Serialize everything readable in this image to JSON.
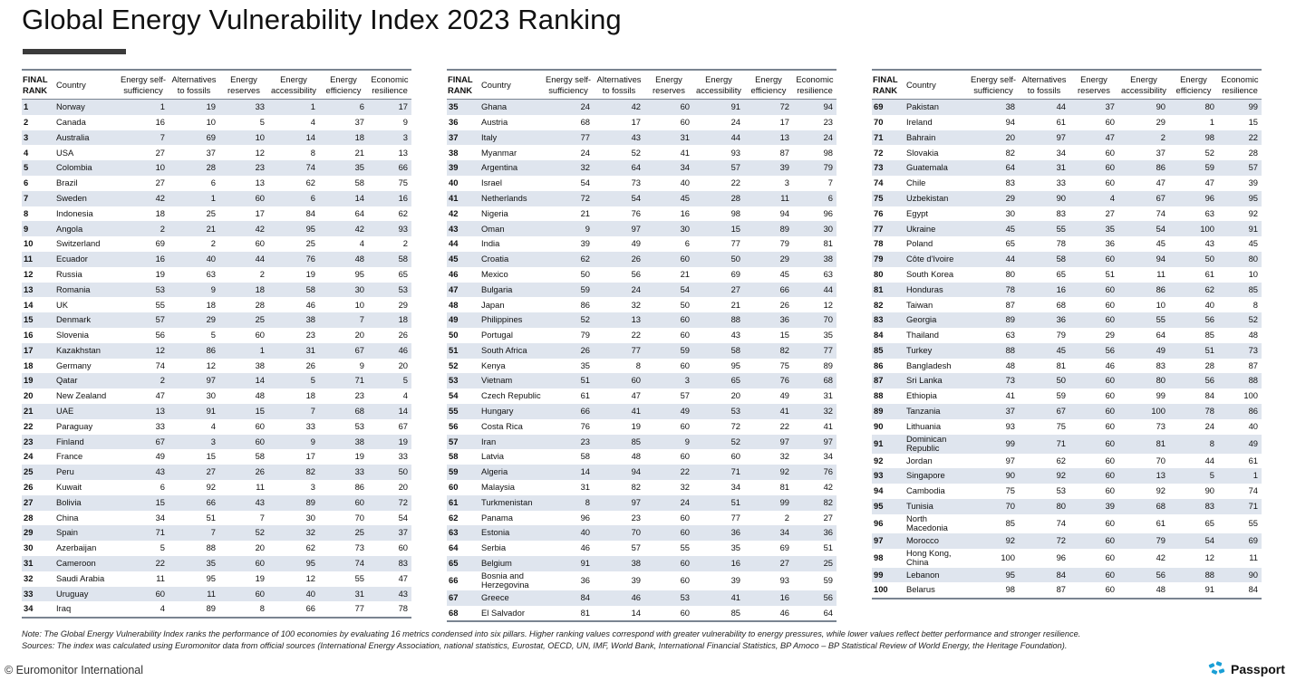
{
  "title": "Global Energy Vulnerability Index 2023 Ranking",
  "columns": {
    "rank": [
      "FINAL",
      "RANK"
    ],
    "country": "Country",
    "c1": [
      "Energy self-",
      "sufficiency"
    ],
    "c2": [
      "Alternatives",
      "to fossils"
    ],
    "c3": [
      "Energy",
      "reserves"
    ],
    "c4": [
      "Energy",
      "accessibility"
    ],
    "c5": [
      "Energy",
      "efficiency"
    ],
    "c6": [
      "Economic",
      "resilience"
    ]
  },
  "tables": [
    [
      [
        "1",
        "Norway",
        "1",
        "19",
        "33",
        "1",
        "6",
        "17"
      ],
      [
        "2",
        "Canada",
        "16",
        "10",
        "5",
        "4",
        "37",
        "9"
      ],
      [
        "3",
        "Australia",
        "7",
        "69",
        "10",
        "14",
        "18",
        "3"
      ],
      [
        "4",
        "USA",
        "27",
        "37",
        "12",
        "8",
        "21",
        "13"
      ],
      [
        "5",
        "Colombia",
        "10",
        "28",
        "23",
        "74",
        "35",
        "66"
      ],
      [
        "6",
        "Brazil",
        "27",
        "6",
        "13",
        "62",
        "58",
        "75"
      ],
      [
        "7",
        "Sweden",
        "42",
        "1",
        "60",
        "6",
        "14",
        "16"
      ],
      [
        "8",
        "Indonesia",
        "18",
        "25",
        "17",
        "84",
        "64",
        "62"
      ],
      [
        "9",
        "Angola",
        "2",
        "21",
        "42",
        "95",
        "42",
        "93"
      ],
      [
        "10",
        "Switzerland",
        "69",
        "2",
        "60",
        "25",
        "4",
        "2"
      ],
      [
        "11",
        "Ecuador",
        "16",
        "40",
        "44",
        "76",
        "48",
        "58"
      ],
      [
        "12",
        "Russia",
        "19",
        "63",
        "2",
        "19",
        "95",
        "65"
      ],
      [
        "13",
        "Romania",
        "53",
        "9",
        "18",
        "58",
        "30",
        "53"
      ],
      [
        "14",
        "UK",
        "55",
        "18",
        "28",
        "46",
        "10",
        "29"
      ],
      [
        "15",
        "Denmark",
        "57",
        "29",
        "25",
        "38",
        "7",
        "18"
      ],
      [
        "16",
        "Slovenia",
        "56",
        "5",
        "60",
        "23",
        "20",
        "26"
      ],
      [
        "17",
        "Kazakhstan",
        "12",
        "86",
        "1",
        "31",
        "67",
        "46"
      ],
      [
        "18",
        "Germany",
        "74",
        "12",
        "38",
        "26",
        "9",
        "20"
      ],
      [
        "19",
        "Qatar",
        "2",
        "97",
        "14",
        "5",
        "71",
        "5"
      ],
      [
        "20",
        "New Zealand",
        "47",
        "30",
        "48",
        "18",
        "23",
        "4"
      ],
      [
        "21",
        "UAE",
        "13",
        "91",
        "15",
        "7",
        "68",
        "14"
      ],
      [
        "22",
        "Paraguay",
        "33",
        "4",
        "60",
        "33",
        "53",
        "67"
      ],
      [
        "23",
        "Finland",
        "67",
        "3",
        "60",
        "9",
        "38",
        "19"
      ],
      [
        "24",
        "France",
        "49",
        "15",
        "58",
        "17",
        "19",
        "33"
      ],
      [
        "25",
        "Peru",
        "43",
        "27",
        "26",
        "82",
        "33",
        "50"
      ],
      [
        "26",
        "Kuwait",
        "6",
        "92",
        "11",
        "3",
        "86",
        "20"
      ],
      [
        "27",
        "Bolivia",
        "15",
        "66",
        "43",
        "89",
        "60",
        "72"
      ],
      [
        "28",
        "China",
        "34",
        "51",
        "7",
        "30",
        "70",
        "54"
      ],
      [
        "29",
        "Spain",
        "71",
        "7",
        "52",
        "32",
        "25",
        "37"
      ],
      [
        "30",
        "Azerbaijan",
        "5",
        "88",
        "20",
        "62",
        "73",
        "60"
      ],
      [
        "31",
        "Cameroon",
        "22",
        "35",
        "60",
        "95",
        "74",
        "83"
      ],
      [
        "32",
        "Saudi Arabia",
        "11",
        "95",
        "19",
        "12",
        "55",
        "47"
      ],
      [
        "33",
        "Uruguay",
        "60",
        "11",
        "60",
        "40",
        "31",
        "43"
      ],
      [
        "34",
        "Iraq",
        "4",
        "89",
        "8",
        "66",
        "77",
        "78"
      ]
    ],
    [
      [
        "35",
        "Ghana",
        "24",
        "42",
        "60",
        "91",
        "72",
        "94"
      ],
      [
        "36",
        "Austria",
        "68",
        "17",
        "60",
        "24",
        "17",
        "23"
      ],
      [
        "37",
        "Italy",
        "77",
        "43",
        "31",
        "44",
        "13",
        "24"
      ],
      [
        "38",
        "Myanmar",
        "24",
        "52",
        "41",
        "93",
        "87",
        "98"
      ],
      [
        "39",
        "Argentina",
        "32",
        "64",
        "34",
        "57",
        "39",
        "79"
      ],
      [
        "40",
        "Israel",
        "54",
        "73",
        "40",
        "22",
        "3",
        "7"
      ],
      [
        "41",
        "Netherlands",
        "72",
        "54",
        "45",
        "28",
        "11",
        "6"
      ],
      [
        "42",
        "Nigeria",
        "21",
        "76",
        "16",
        "98",
        "94",
        "96"
      ],
      [
        "43",
        "Oman",
        "9",
        "97",
        "30",
        "15",
        "89",
        "30"
      ],
      [
        "44",
        "India",
        "39",
        "49",
        "6",
        "77",
        "79",
        "81"
      ],
      [
        "45",
        "Croatia",
        "62",
        "26",
        "60",
        "50",
        "29",
        "38"
      ],
      [
        "46",
        "Mexico",
        "50",
        "56",
        "21",
        "69",
        "45",
        "63"
      ],
      [
        "47",
        "Bulgaria",
        "59",
        "24",
        "54",
        "27",
        "66",
        "44"
      ],
      [
        "48",
        "Japan",
        "86",
        "32",
        "50",
        "21",
        "26",
        "12"
      ],
      [
        "49",
        "Philippines",
        "52",
        "13",
        "60",
        "88",
        "36",
        "70"
      ],
      [
        "50",
        "Portugal",
        "79",
        "22",
        "60",
        "43",
        "15",
        "35"
      ],
      [
        "51",
        "South Africa",
        "26",
        "77",
        "59",
        "58",
        "82",
        "77"
      ],
      [
        "52",
        "Kenya",
        "35",
        "8",
        "60",
        "95",
        "75",
        "89"
      ],
      [
        "53",
        "Vietnam",
        "51",
        "60",
        "3",
        "65",
        "76",
        "68"
      ],
      [
        "54",
        "Czech Republic",
        "61",
        "47",
        "57",
        "20",
        "49",
        "31"
      ],
      [
        "55",
        "Hungary",
        "66",
        "41",
        "49",
        "53",
        "41",
        "32"
      ],
      [
        "56",
        "Costa Rica",
        "76",
        "19",
        "60",
        "72",
        "22",
        "41"
      ],
      [
        "57",
        "Iran",
        "23",
        "85",
        "9",
        "52",
        "97",
        "97"
      ],
      [
        "58",
        "Latvia",
        "58",
        "48",
        "60",
        "60",
        "32",
        "34"
      ],
      [
        "59",
        "Algeria",
        "14",
        "94",
        "22",
        "71",
        "92",
        "76"
      ],
      [
        "60",
        "Malaysia",
        "31",
        "82",
        "32",
        "34",
        "81",
        "42"
      ],
      [
        "61",
        "Turkmenistan",
        "8",
        "97",
        "24",
        "51",
        "99",
        "82"
      ],
      [
        "62",
        "Panama",
        "96",
        "23",
        "60",
        "77",
        "2",
        "27"
      ],
      [
        "63",
        "Estonia",
        "40",
        "70",
        "60",
        "36",
        "34",
        "36"
      ],
      [
        "64",
        "Serbia",
        "46",
        "57",
        "55",
        "35",
        "69",
        "51"
      ],
      [
        "65",
        "Belgium",
        "91",
        "38",
        "60",
        "16",
        "27",
        "25"
      ],
      [
        "66",
        "Bosnia and Herzegovina",
        "36",
        "39",
        "60",
        "39",
        "93",
        "59"
      ],
      [
        "67",
        "Greece",
        "84",
        "46",
        "53",
        "41",
        "16",
        "56"
      ],
      [
        "68",
        "El Salvador",
        "81",
        "14",
        "60",
        "85",
        "46",
        "64"
      ]
    ],
    [
      [
        "69",
        "Pakistan",
        "38",
        "44",
        "37",
        "90",
        "80",
        "99"
      ],
      [
        "70",
        "Ireland",
        "94",
        "61",
        "60",
        "29",
        "1",
        "15"
      ],
      [
        "71",
        "Bahrain",
        "20",
        "97",
        "47",
        "2",
        "98",
        "22"
      ],
      [
        "72",
        "Slovakia",
        "82",
        "34",
        "60",
        "37",
        "52",
        "28"
      ],
      [
        "73",
        "Guatemala",
        "64",
        "31",
        "60",
        "86",
        "59",
        "57"
      ],
      [
        "74",
        "Chile",
        "83",
        "33",
        "60",
        "47",
        "47",
        "39"
      ],
      [
        "75",
        "Uzbekistan",
        "29",
        "90",
        "4",
        "67",
        "96",
        "95"
      ],
      [
        "76",
        "Egypt",
        "30",
        "83",
        "27",
        "74",
        "63",
        "92"
      ],
      [
        "77",
        "Ukraine",
        "45",
        "55",
        "35",
        "54",
        "100",
        "91"
      ],
      [
        "78",
        "Poland",
        "65",
        "78",
        "36",
        "45",
        "43",
        "45"
      ],
      [
        "79",
        "Côte d'Ivoire",
        "44",
        "58",
        "60",
        "94",
        "50",
        "80"
      ],
      [
        "80",
        "South Korea",
        "80",
        "65",
        "51",
        "11",
        "61",
        "10"
      ],
      [
        "81",
        "Honduras",
        "78",
        "16",
        "60",
        "86",
        "62",
        "85"
      ],
      [
        "82",
        "Taiwan",
        "87",
        "68",
        "60",
        "10",
        "40",
        "8"
      ],
      [
        "83",
        "Georgia",
        "89",
        "36",
        "60",
        "55",
        "56",
        "52"
      ],
      [
        "84",
        "Thailand",
        "63",
        "79",
        "29",
        "64",
        "85",
        "48"
      ],
      [
        "85",
        "Turkey",
        "88",
        "45",
        "56",
        "49",
        "51",
        "73"
      ],
      [
        "86",
        "Bangladesh",
        "48",
        "81",
        "46",
        "83",
        "28",
        "87"
      ],
      [
        "87",
        "Sri Lanka",
        "73",
        "50",
        "60",
        "80",
        "56",
        "88"
      ],
      [
        "88",
        "Ethiopia",
        "41",
        "59",
        "60",
        "99",
        "84",
        "100"
      ],
      [
        "89",
        "Tanzania",
        "37",
        "67",
        "60",
        "100",
        "78",
        "86"
      ],
      [
        "90",
        "Lithuania",
        "93",
        "75",
        "60",
        "73",
        "24",
        "40"
      ],
      [
        "91",
        "Dominican Republic",
        "99",
        "71",
        "60",
        "81",
        "8",
        "49"
      ],
      [
        "92",
        "Jordan",
        "97",
        "62",
        "60",
        "70",
        "44",
        "61"
      ],
      [
        "93",
        "Singapore",
        "90",
        "92",
        "60",
        "13",
        "5",
        "1"
      ],
      [
        "94",
        "Cambodia",
        "75",
        "53",
        "60",
        "92",
        "90",
        "74"
      ],
      [
        "95",
        "Tunisia",
        "70",
        "80",
        "39",
        "68",
        "83",
        "71"
      ],
      [
        "96",
        "North Macedonia",
        "85",
        "74",
        "60",
        "61",
        "65",
        "55"
      ],
      [
        "97",
        "Morocco",
        "92",
        "72",
        "60",
        "79",
        "54",
        "69"
      ],
      [
        "98",
        "Hong Kong, China",
        "100",
        "96",
        "60",
        "42",
        "12",
        "11"
      ],
      [
        "99",
        "Lebanon",
        "95",
        "84",
        "60",
        "56",
        "88",
        "90"
      ],
      [
        "100",
        "Belarus",
        "98",
        "87",
        "60",
        "48",
        "91",
        "84"
      ]
    ]
  ],
  "note": "Note: The Global Energy Vulnerability Index ranks the performance of 100 economies by evaluating 16 metrics condensed into six pillars. Higher ranking values correspond with greater vulnerability to energy pressures, while lower values reflect better performance and stronger resilience.",
  "sources": "Sources: The index was calculated using Euromonitor data from official sources (International Energy Association, national statistics, Eurostat, OECD, UN, IMF, World Bank, International Financial Statistics, BP Amoco – BP Statistical Review of World Energy, the Heritage Foundation).",
  "footer": {
    "copyright": "© Euromonitor International",
    "brand": "Passport",
    "brand_icon": "passport-logo-icon",
    "brand_color": "#1a9fd6"
  },
  "colors": {
    "row_stripe": "#dfe5ee",
    "rule": "#7a8491",
    "title_bar": "#3b3b3b"
  }
}
